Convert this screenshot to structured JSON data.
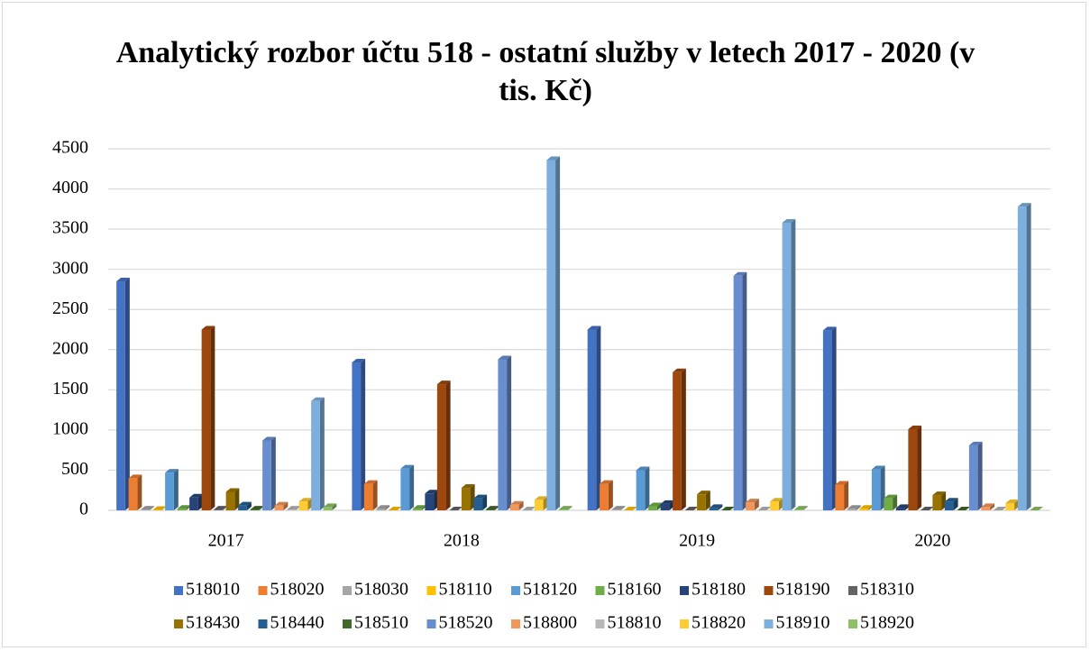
{
  "chart_data": {
    "type": "bar3d",
    "title": "Analytický rozbor účtu 518 - ostatní služby v letech 2017 - 2020 (v tis. Kč)",
    "categories": [
      "2017",
      "2018",
      "2019",
      "2020"
    ],
    "ylim": [
      0,
      4500
    ],
    "yticks": [
      0,
      500,
      1000,
      1500,
      2000,
      2500,
      3000,
      3500,
      4000,
      4500
    ],
    "grid": true,
    "legend": "bottom",
    "series": [
      {
        "name": "518010",
        "color": "#4472c4",
        "values": [
          2850,
          1840,
          2250,
          2240
        ]
      },
      {
        "name": "518020",
        "color": "#ed7d31",
        "values": [
          400,
          330,
          330,
          320
        ]
      },
      {
        "name": "518030",
        "color": "#a5a5a5",
        "values": [
          10,
          20,
          10,
          20
        ]
      },
      {
        "name": "518110",
        "color": "#ffc000",
        "values": [
          5,
          0,
          0,
          20
        ]
      },
      {
        "name": "518120",
        "color": "#5b9bd5",
        "values": [
          470,
          520,
          500,
          510
        ]
      },
      {
        "name": "518160",
        "color": "#70ad47",
        "values": [
          20,
          20,
          50,
          150
        ]
      },
      {
        "name": "518180",
        "color": "#264478",
        "values": [
          160,
          210,
          80,
          30
        ]
      },
      {
        "name": "518190",
        "color": "#9e480e",
        "values": [
          2250,
          1570,
          1720,
          1010
        ]
      },
      {
        "name": "518310",
        "color": "#636363",
        "values": [
          10,
          0,
          0,
          0
        ]
      },
      {
        "name": "518430",
        "color": "#997300",
        "values": [
          230,
          280,
          200,
          190
        ]
      },
      {
        "name": "518440",
        "color": "#255e91",
        "values": [
          60,
          150,
          30,
          110
        ]
      },
      {
        "name": "518510",
        "color": "#43682b",
        "values": [
          10,
          10,
          0,
          0
        ]
      },
      {
        "name": "518520",
        "color": "#698ed0",
        "values": [
          870,
          1880,
          2920,
          810
        ]
      },
      {
        "name": "518800",
        "color": "#f1975a",
        "values": [
          60,
          70,
          100,
          40
        ]
      },
      {
        "name": "518810",
        "color": "#b7b7b7",
        "values": [
          10,
          0,
          0,
          0
        ]
      },
      {
        "name": "518820",
        "color": "#ffcd33",
        "values": [
          110,
          130,
          110,
          90
        ]
      },
      {
        "name": "518910",
        "color": "#7cafdd",
        "values": [
          1360,
          4360,
          3580,
          3780
        ]
      },
      {
        "name": "518920",
        "color": "#8cc168",
        "values": [
          40,
          10,
          10,
          0
        ]
      }
    ]
  }
}
